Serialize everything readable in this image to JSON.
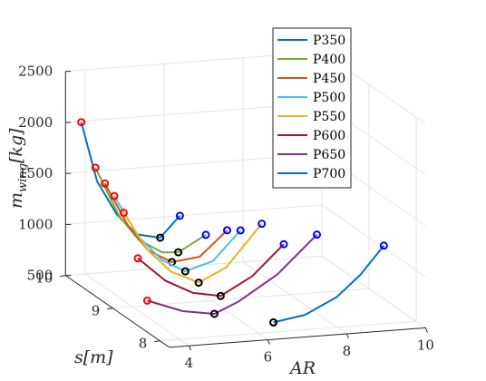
{
  "chart_data": {
    "type": "line",
    "projection": "3d",
    "xlabel": "AR",
    "ylabel": "s[m]",
    "zlabel": "m_wing [kg]",
    "xlim": [
      3.5,
      10
    ],
    "ylim": [
      7.8,
      10
    ],
    "zlim": [
      500,
      2500
    ],
    "x_ticks": [
      "4",
      "6",
      "8",
      "10"
    ],
    "y_ticks": [
      "8",
      "9",
      "10"
    ],
    "z_ticks": [
      "500",
      "1000",
      "1500",
      "2000",
      "2500"
    ],
    "grid": true,
    "legend_position": "top-right",
    "series": [
      {
        "name": "P350",
        "color": "#0072BD",
        "s": 10.0,
        "AR": [
          3.9,
          4.3,
          4.8,
          5.3,
          5.9,
          6.4
        ],
        "m": [
          1990,
          1400,
          1060,
          850,
          800,
          1000
        ]
      },
      {
        "name": "P400",
        "color": "#77AC30",
        "s": 9.7,
        "AR": [
          3.9,
          4.5,
          5.0,
          5.6,
          6.0,
          6.7
        ],
        "m": [
          1640,
          1150,
          900,
          760,
          750,
          900
        ]
      },
      {
        "name": "P450",
        "color": "#D95319",
        "s": 9.5,
        "AR": [
          3.9,
          4.5,
          5.0,
          5.6,
          6.3,
          7.0
        ],
        "m": [
          1550,
          1110,
          860,
          730,
          760,
          1000
        ]
      },
      {
        "name": "P500",
        "color": "#4DBEEE",
        "s": 9.3,
        "AR": [
          3.9,
          4.5,
          5.1,
          5.7,
          6.4,
          7.1
        ],
        "m": [
          1490,
          1080,
          830,
          700,
          780,
          1060
        ]
      },
      {
        "name": "P550",
        "color": "#EDB120",
        "s": 9.1,
        "AR": [
          3.9,
          4.5,
          5.1,
          5.8,
          6.5,
          7.4
        ],
        "m": [
          1390,
          1010,
          780,
          650,
          780,
          1180
        ]
      },
      {
        "name": "P600",
        "color": "#A2142F",
        "s": 8.8,
        "AR": [
          3.9,
          4.6,
          5.3,
          6.0,
          6.8,
          7.6
        ],
        "m": [
          1040,
          800,
          660,
          610,
          780,
          1070
        ]
      },
      {
        "name": "P650",
        "color": "#7E2F8E",
        "s": 8.6,
        "AR": [
          3.9,
          4.8,
          5.6,
          6.2,
          7.2,
          8.2
        ],
        "m": [
          690,
          560,
          510,
          610,
          850,
          1210
        ]
      },
      {
        "name": "P700",
        "color": "#0072BD",
        "s": 8.1,
        "AR": [
          6.5,
          7.3,
          8.1,
          8.7,
          9.3
        ],
        "m": [
          560,
          610,
          760,
          960,
          1230
        ]
      }
    ],
    "markers": {
      "start": {
        "shape": "circle",
        "color": "#FF0000"
      },
      "minimum": {
        "shape": "circle",
        "color": "#000000"
      },
      "end": {
        "shape": "circle",
        "color": "#0000FF"
      }
    }
  }
}
